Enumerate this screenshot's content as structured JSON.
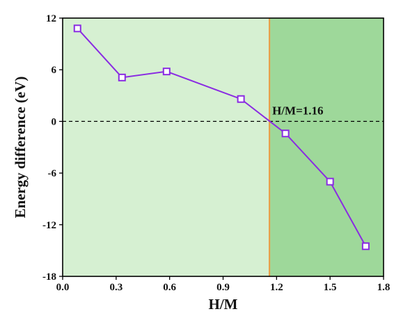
{
  "chart_data": {
    "type": "line",
    "xlabel": "H/M",
    "ylabel": "Energy difference (eV)",
    "xlim": [
      0.0,
      1.8
    ],
    "ylim": [
      -18,
      12
    ],
    "xticks": [
      "0.0",
      "0.3",
      "0.6",
      "0.9",
      "1.2",
      "1.5",
      "1.8"
    ],
    "yticks": [
      "12",
      "6",
      "0",
      "-6",
      "-12",
      "-18"
    ],
    "series": [
      {
        "x": [
          0.083,
          0.333,
          0.583,
          1.0,
          1.25,
          1.5,
          1.7
        ],
        "y": [
          10.8,
          5.1,
          5.8,
          2.6,
          -1.4,
          -7.0,
          -14.5
        ],
        "marker": "square",
        "color": "#8a2be2"
      }
    ],
    "reference_line": {
      "y": 0,
      "style": "dashed",
      "color": "#000000"
    },
    "threshold": {
      "x": 1.16,
      "label": "H/M=1.16",
      "line_color": "#e8a04a"
    },
    "regions": [
      {
        "from": 0.0,
        "to": 1.16,
        "color": "#d6f0d2"
      },
      {
        "from": 1.16,
        "to": 1.8,
        "color": "#9ed89a"
      }
    ],
    "grid": false,
    "legend": "none"
  }
}
